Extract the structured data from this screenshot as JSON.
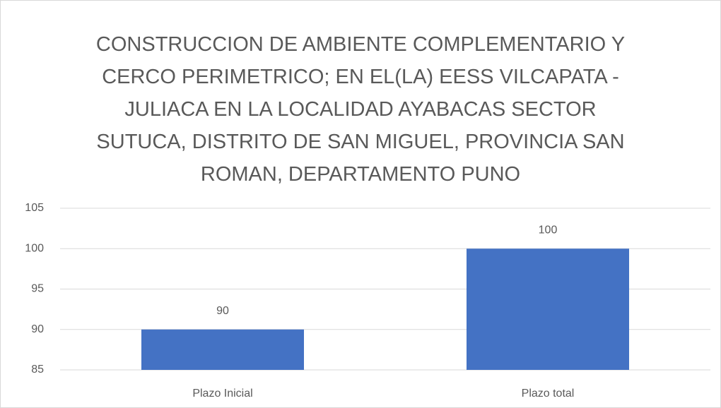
{
  "chart_data": {
    "type": "bar",
    "title": "CONSTRUCCION DE AMBIENTE COMPLEMENTARIO Y CERCO PERIMETRICO; EN EL(LA) EESS VILCAPATA - JULIACA EN LA LOCALIDAD AYABACAS SECTOR SUTUCA, DISTRITO DE SAN MIGUEL, PROVINCIA SAN ROMAN, DEPARTAMENTO PUNO",
    "categories": [
      "Plazo Inicial",
      "Plazo total"
    ],
    "values": [
      90,
      100
    ],
    "color": "#4472c4",
    "ylim": [
      85,
      105
    ],
    "yticks": [
      85,
      90,
      95,
      100,
      105
    ],
    "grid": true
  }
}
